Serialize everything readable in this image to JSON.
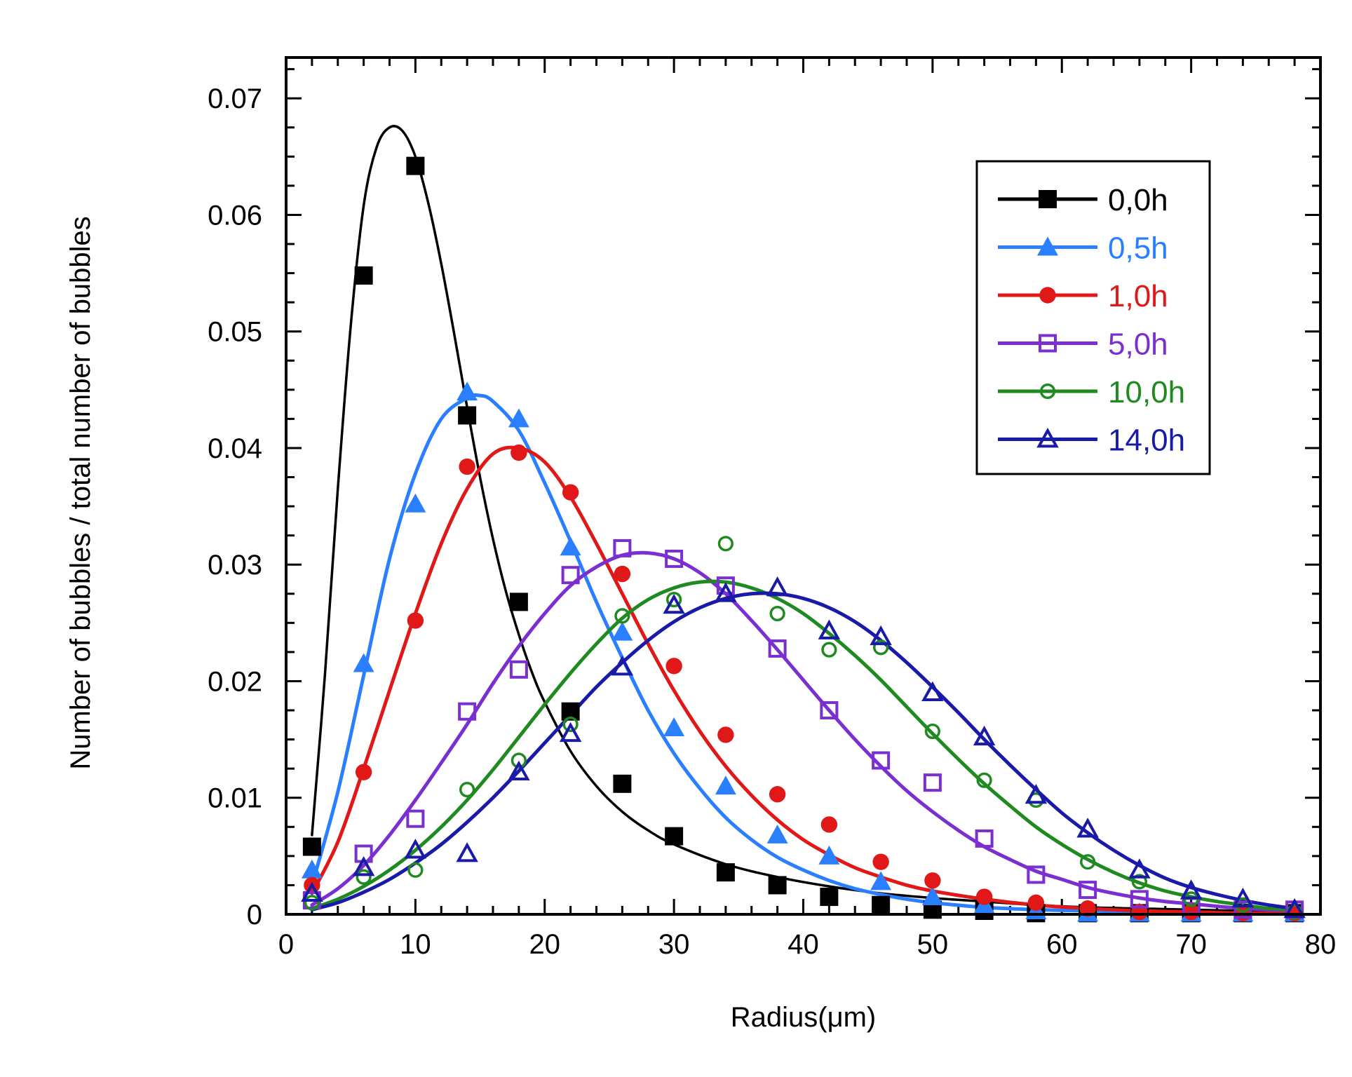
{
  "chart_data": {
    "type": "scatter",
    "title": "",
    "xlabel": "Radius(μm)",
    "ylabel": "Number of bubbles / total number of bubbles",
    "xlim": [
      0,
      80
    ],
    "ylim": [
      0,
      0.0735
    ],
    "x_ticks": [
      0,
      10,
      20,
      30,
      40,
      50,
      60,
      70,
      80
    ],
    "x_tick_labels": [
      "0",
      "10",
      "20",
      "30",
      "40",
      "50",
      "60",
      "70",
      "80"
    ],
    "y_ticks": [
      0,
      0.01,
      0.02,
      0.03,
      0.04,
      0.05,
      0.06,
      0.07
    ],
    "y_tick_labels": [
      "0",
      "0.01",
      "0.02",
      "0.03",
      "0.04",
      "0.05",
      "0.06",
      "0.07"
    ],
    "grid": false,
    "legend_position": "top-right",
    "x": [
      2,
      6,
      10,
      14,
      18,
      22,
      26,
      30,
      34,
      38,
      42,
      46,
      50,
      54,
      58,
      62,
      66,
      70,
      74,
      78
    ],
    "series": [
      {
        "name": "0,0h",
        "color": "#000000",
        "marker": "filled-square",
        "values": [
          0.0058,
          0.0548,
          0.0642,
          0.0428,
          0.0268,
          0.0174,
          0.0112,
          0.0067,
          0.0036,
          0.0025,
          0.0015,
          0.0008,
          0.0004,
          0.0003,
          0.0001,
          0.0001,
          0.0001,
          0.0001,
          0.0001,
          0.0001
        ],
        "fit_x": [
          2,
          3,
          4,
          5,
          6,
          7,
          8,
          9,
          10,
          11,
          12,
          13,
          14,
          15,
          16,
          17,
          18,
          19,
          20,
          22,
          24,
          26,
          28,
          30,
          34,
          38,
          42,
          46,
          50,
          54,
          58,
          62,
          66,
          70,
          74,
          78
        ],
        "fit_y": [
          0.0068,
          0.0205,
          0.0365,
          0.0505,
          0.0608,
          0.0658,
          0.0675,
          0.0672,
          0.065,
          0.061,
          0.0558,
          0.0498,
          0.0435,
          0.0375,
          0.0322,
          0.0277,
          0.024,
          0.0208,
          0.0182,
          0.014,
          0.011,
          0.0088,
          0.0072,
          0.006,
          0.0043,
          0.0032,
          0.0024,
          0.0018,
          0.0014,
          0.0011,
          0.0008,
          0.0006,
          0.0005,
          0.0004,
          0.0003,
          0.0002
        ]
      },
      {
        "name": "0,5h",
        "color": "#2a7fff",
        "marker": "filled-triangle",
        "values": [
          0.0038,
          0.0215,
          0.0352,
          0.0448,
          0.0425,
          0.0315,
          0.0242,
          0.016,
          0.011,
          0.0068,
          0.005,
          0.0028,
          0.0015,
          0.0008,
          0.0003,
          0.0001,
          0.0001,
          0.0001,
          0.0001,
          0.0001
        ],
        "fit_x": [
          2,
          4,
          6,
          8,
          10,
          12,
          14,
          15,
          16,
          18,
          20,
          22,
          24,
          26,
          28,
          30,
          32,
          34,
          36,
          38,
          40,
          42,
          44,
          46,
          48,
          50,
          54,
          58,
          62,
          66,
          70,
          74,
          78
        ],
        "fit_y": [
          0.0025,
          0.0105,
          0.0205,
          0.0305,
          0.0378,
          0.0425,
          0.0443,
          0.0445,
          0.044,
          0.0415,
          0.037,
          0.032,
          0.0268,
          0.022,
          0.0175,
          0.0138,
          0.0108,
          0.0083,
          0.0064,
          0.0049,
          0.0038,
          0.0029,
          0.0022,
          0.0017,
          0.0013,
          0.001,
          0.0006,
          0.0004,
          0.0003,
          0.0002,
          0.0001,
          0.0001,
          0.0001
        ]
      },
      {
        "name": "1,0h",
        "color": "#e01818",
        "marker": "filled-circle",
        "values": [
          0.0025,
          0.0122,
          0.0252,
          0.0384,
          0.0396,
          0.0362,
          0.0292,
          0.0213,
          0.0154,
          0.0103,
          0.0077,
          0.0045,
          0.0029,
          0.0015,
          0.001,
          0.0005,
          0.0002,
          0.0002,
          0.0001,
          0.0001
        ],
        "fit_x": [
          2,
          4,
          6,
          8,
          10,
          12,
          14,
          16,
          18,
          20,
          22,
          24,
          26,
          28,
          30,
          32,
          34,
          36,
          38,
          40,
          42,
          44,
          46,
          48,
          50,
          54,
          58,
          62,
          66,
          70,
          74,
          78
        ],
        "fit_y": [
          0.0018,
          0.0062,
          0.0125,
          0.0192,
          0.0258,
          0.0318,
          0.0365,
          0.0395,
          0.04,
          0.0388,
          0.0358,
          0.0318,
          0.0275,
          0.0232,
          0.0192,
          0.0157,
          0.0127,
          0.0102,
          0.0081,
          0.0064,
          0.0051,
          0.004,
          0.0032,
          0.0025,
          0.002,
          0.0013,
          0.0008,
          0.0005,
          0.0003,
          0.0002,
          0.0001,
          0.0001
        ]
      },
      {
        "name": "5,0h",
        "color": "#7a2fd0",
        "marker": "open-square",
        "values": [
          0.0012,
          0.0052,
          0.0082,
          0.0174,
          0.021,
          0.0291,
          0.0314,
          0.0305,
          0.0282,
          0.0228,
          0.0175,
          0.0132,
          0.0113,
          0.0065,
          0.0034,
          0.0021,
          0.0013,
          0.0007,
          0.0004,
          0.0004
        ],
        "fit_x": [
          2,
          4,
          6,
          8,
          10,
          12,
          14,
          16,
          18,
          20,
          22,
          24,
          26,
          28,
          30,
          32,
          34,
          36,
          38,
          40,
          42,
          44,
          46,
          48,
          50,
          52,
          54,
          56,
          58,
          60,
          62,
          64,
          66,
          68,
          70,
          74,
          78
        ],
        "fit_y": [
          0.0008,
          0.0022,
          0.0042,
          0.0068,
          0.0098,
          0.013,
          0.0163,
          0.0198,
          0.023,
          0.0258,
          0.0282,
          0.0298,
          0.0308,
          0.031,
          0.0305,
          0.0293,
          0.0275,
          0.0252,
          0.0227,
          0.0201,
          0.0175,
          0.015,
          0.0127,
          0.0106,
          0.0088,
          0.0072,
          0.0058,
          0.0047,
          0.0037,
          0.003,
          0.0023,
          0.0018,
          0.0014,
          0.0011,
          0.0009,
          0.0005,
          0.0003
        ]
      },
      {
        "name": "10,0h",
        "color": "#1f8a1f",
        "marker": "open-circle",
        "values": [
          0.001,
          0.0032,
          0.0038,
          0.0107,
          0.0132,
          0.0163,
          0.0256,
          0.027,
          0.0318,
          0.0258,
          0.0227,
          0.0229,
          0.0157,
          0.0115,
          0.0098,
          0.0045,
          0.0028,
          0.0013,
          0.0008,
          0.0002
        ],
        "fit_x": [
          2,
          4,
          6,
          8,
          10,
          12,
          14,
          16,
          18,
          20,
          22,
          24,
          26,
          28,
          30,
          32,
          34,
          36,
          38,
          40,
          42,
          44,
          46,
          48,
          50,
          52,
          54,
          56,
          58,
          60,
          62,
          64,
          66,
          68,
          70,
          72,
          74,
          76,
          78
        ],
        "fit_y": [
          0.0005,
          0.0013,
          0.0024,
          0.0038,
          0.0055,
          0.0075,
          0.0098,
          0.0124,
          0.0152,
          0.018,
          0.0207,
          0.0232,
          0.0254,
          0.027,
          0.028,
          0.0285,
          0.0285,
          0.028,
          0.0271,
          0.0258,
          0.0241,
          0.0222,
          0.0201,
          0.0178,
          0.0155,
          0.0133,
          0.0112,
          0.0093,
          0.0075,
          0.006,
          0.0047,
          0.0036,
          0.0027,
          0.002,
          0.0015,
          0.0011,
          0.0008,
          0.0005,
          0.0004
        ]
      },
      {
        "name": "14,0h",
        "color": "#1a1aa8",
        "marker": "open-triangle",
        "values": [
          0.0018,
          0.004,
          0.0055,
          0.0052,
          0.0122,
          0.0155,
          0.0212,
          0.0265,
          0.0275,
          0.028,
          0.0243,
          0.0238,
          0.019,
          0.0152,
          0.0102,
          0.0073,
          0.0038,
          0.002,
          0.0013,
          0.0004
        ],
        "fit_x": [
          2,
          4,
          6,
          8,
          10,
          12,
          14,
          16,
          18,
          20,
          22,
          24,
          26,
          28,
          30,
          32,
          34,
          36,
          38,
          40,
          42,
          44,
          46,
          48,
          50,
          52,
          54,
          56,
          58,
          60,
          62,
          64,
          66,
          68,
          70,
          72,
          74,
          76,
          78
        ],
        "fit_y": [
          0.0004,
          0.001,
          0.0019,
          0.003,
          0.0044,
          0.006,
          0.0079,
          0.01,
          0.0123,
          0.0147,
          0.0171,
          0.0195,
          0.0216,
          0.0235,
          0.0251,
          0.0263,
          0.0271,
          0.0275,
          0.0275,
          0.0271,
          0.0263,
          0.0251,
          0.0235,
          0.0216,
          0.0195,
          0.0173,
          0.015,
          0.0128,
          0.0107,
          0.0087,
          0.007,
          0.0055,
          0.0042,
          0.0031,
          0.0023,
          0.0017,
          0.0012,
          0.0008,
          0.0005
        ]
      }
    ]
  }
}
